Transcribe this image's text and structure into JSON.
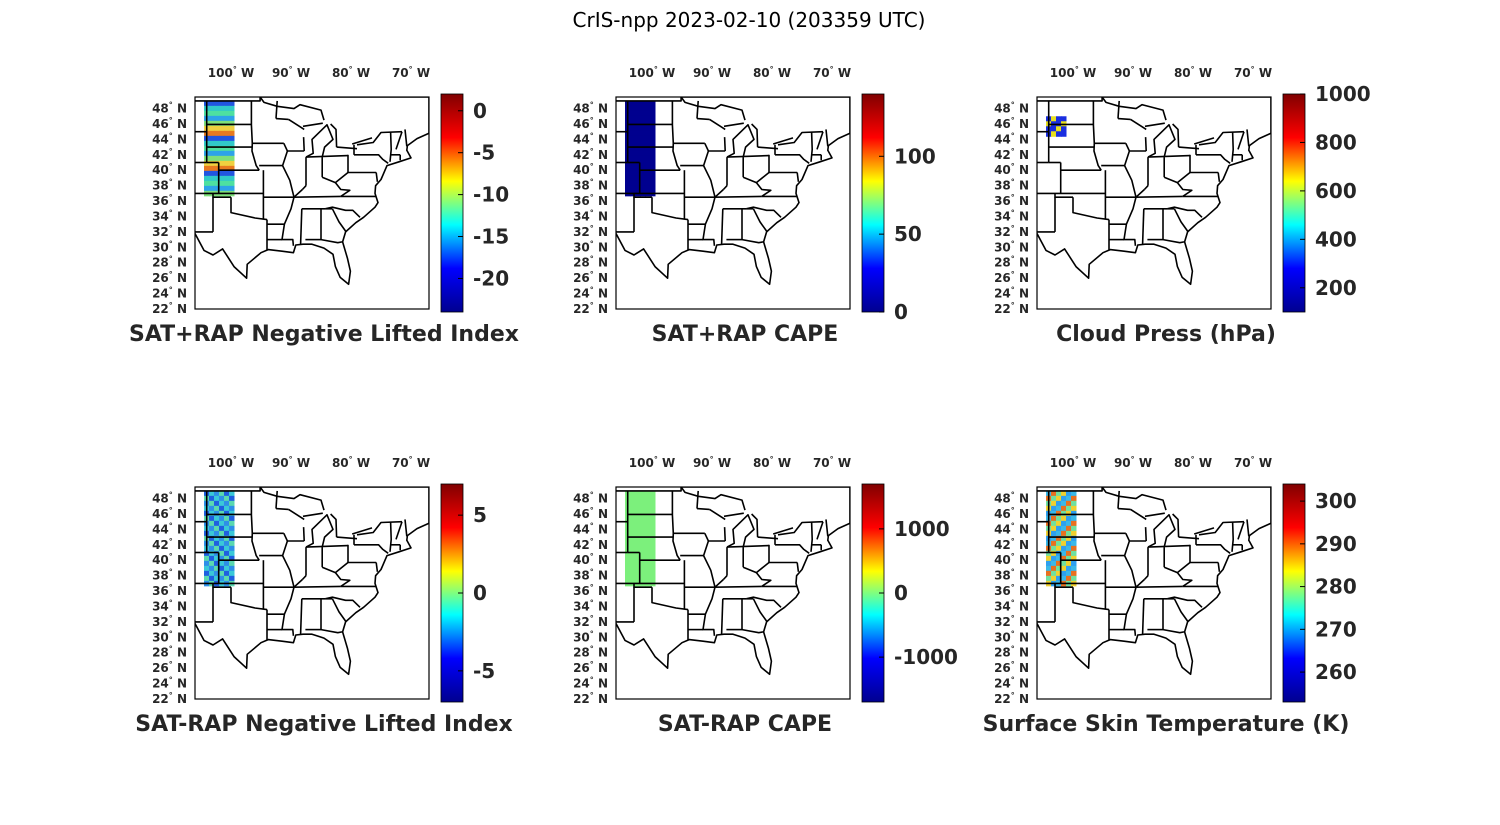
{
  "figure_title": "CrIS-npp 2023-02-10 (203359 UTC)",
  "lon_ticks": [
    "100",
    "90",
    "80",
    "70"
  ],
  "lon_hemi": "W",
  "lat_ticks": [
    "48",
    "46",
    "44",
    "42",
    "40",
    "38",
    "36",
    "34",
    "32",
    "30",
    "28",
    "26",
    "24",
    "22"
  ],
  "lat_hemi": "N",
  "degree_symbol": "°",
  "colormap": "jet",
  "colormap_stops": [
    "#00008f",
    "#0000ff",
    "#00ffff",
    "#ffff00",
    "#ff0000",
    "#800000"
  ],
  "map_extent": {
    "lon": [
      -106.0,
      -67.0
    ],
    "lat": [
      22.0,
      49.5
    ]
  },
  "panels": [
    {
      "id": "li_sum",
      "title": "SAT+RAP Negative Lifted Index",
      "cbar": {
        "min": -24,
        "max": 2,
        "ticks": [
          "0",
          "-5",
          "-10",
          "-15",
          "-20"
        ],
        "tick_values": [
          0,
          -5,
          -10,
          -15,
          -20
        ]
      },
      "data_region": {
        "lon": [
          -104.5,
          -99.5
        ],
        "lat": [
          37.0,
          49.0
        ]
      },
      "data_colors": [
        "#31c9c9",
        "#4ee0a0",
        "#2ea3e8",
        "#7ee07a",
        "#f0d040",
        "#e87a20",
        "#2255e0"
      ]
    },
    {
      "id": "cape_sum",
      "title": "SAT+RAP CAPE",
      "cbar": {
        "min": 0,
        "max": 140,
        "ticks": [
          "100",
          "50",
          "0"
        ],
        "tick_values": [
          100,
          50,
          0
        ]
      },
      "data_region": {
        "lon": [
          -104.5,
          -99.5
        ],
        "lat": [
          37.0,
          49.0
        ]
      },
      "data_colors": [
        "#00008f"
      ]
    },
    {
      "id": "cloud_press",
      "title": "Cloud Press (hPa)",
      "cbar": {
        "min": 100,
        "max": 1000,
        "ticks": [
          "1000",
          "800",
          "600",
          "400",
          "200"
        ],
        "tick_values": [
          1000,
          800,
          600,
          400,
          200
        ]
      },
      "data_region": {
        "lon": [
          -104.5,
          -101.5
        ],
        "lat": [
          45.0,
          47.0
        ]
      },
      "data_colors": [
        "#1a2ee0",
        "#e8e020",
        "#1a2ee0"
      ]
    },
    {
      "id": "li_diff",
      "title": "SAT-RAP Negative Lifted Index",
      "cbar": {
        "min": -7,
        "max": 7,
        "ticks": [
          "5",
          "0",
          "-5"
        ],
        "tick_values": [
          5,
          0,
          -5
        ]
      },
      "data_region": {
        "lon": [
          -104.5,
          -99.5
        ],
        "lat": [
          37.0,
          49.0
        ]
      },
      "data_colors": [
        "#2e8fe8",
        "#3ac8d8",
        "#1f5fe0",
        "#5ad8b0"
      ]
    },
    {
      "id": "cape_diff",
      "title": "SAT-RAP CAPE",
      "cbar": {
        "min": -1700,
        "max": 1700,
        "ticks": [
          "1000",
          "0",
          "-1000"
        ],
        "tick_values": [
          1000,
          0,
          -1000
        ]
      },
      "data_region": {
        "lon": [
          -104.5,
          -99.5
        ],
        "lat": [
          37.0,
          49.0
        ]
      },
      "data_colors": [
        "#7cf07c"
      ]
    },
    {
      "id": "skin_temp",
      "title": "Surface Skin Temperature (K)",
      "cbar": {
        "min": 253,
        "max": 304,
        "ticks": [
          "300",
          "290",
          "280",
          "270",
          "260"
        ],
        "tick_values": [
          300,
          290,
          280,
          270,
          260
        ]
      },
      "data_region": {
        "lon": [
          -104.5,
          -99.5
        ],
        "lat": [
          37.0,
          49.0
        ]
      },
      "data_colors": [
        "#3ab8e8",
        "#f0d030",
        "#e87020",
        "#2ea0f0",
        "#70e0a0"
      ]
    }
  ]
}
